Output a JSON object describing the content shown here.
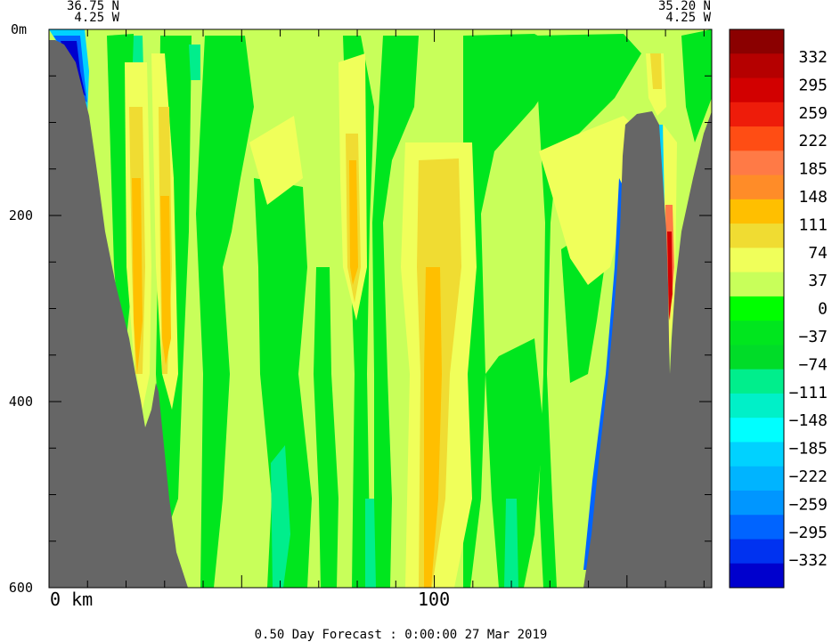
{
  "chart_data": {
    "type": "heatmap",
    "title": "0.50 Day Forecast :  0:00:00  27 Mar 2019",
    "section": {
      "start": {
        "lat": "36.75 N",
        "lon": "4.25 W"
      },
      "end": {
        "lat": "35.20 N",
        "lon": "4.25 W"
      }
    },
    "x_axis": {
      "unit": "km",
      "range": [
        0,
        172
      ],
      "ticks": [
        0,
        100
      ],
      "tick_labels": [
        "0 km",
        "100"
      ]
    },
    "y_axis": {
      "range": [
        0,
        600
      ],
      "inverted": true,
      "ticks": [
        0,
        200,
        400,
        600
      ],
      "tick_labels": [
        "0m",
        "200",
        "400",
        "600"
      ]
    },
    "colorbar": {
      "labels": [
        "332",
        "295",
        "259",
        "222",
        "185",
        "148",
        "111",
        "74",
        "37",
        "0",
        "-37",
        "-74",
        "-111",
        "-148",
        "-185",
        "-222",
        "-259",
        "-295",
        "-332"
      ],
      "colors": [
        "#8b0000",
        "#b50000",
        "#d20000",
        "#ee1c0a",
        "#ff4d14",
        "#ff7a46",
        "#ff8c28",
        "#ffbf00",
        "#f0dc32",
        "#f0ff5a",
        "#c8ff5a",
        "#00ff00",
        "#00e61e",
        "#00dc28",
        "#00ee8c",
        "#00f0c8",
        "#00ffff",
        "#00d2ff",
        "#00b4ff",
        "#0096ff",
        "#0064ff",
        "#0032f0",
        "#0000cd"
      ]
    },
    "field_colors": {
      "background": "#c8ff5a",
      "land": "#666666"
    }
  }
}
